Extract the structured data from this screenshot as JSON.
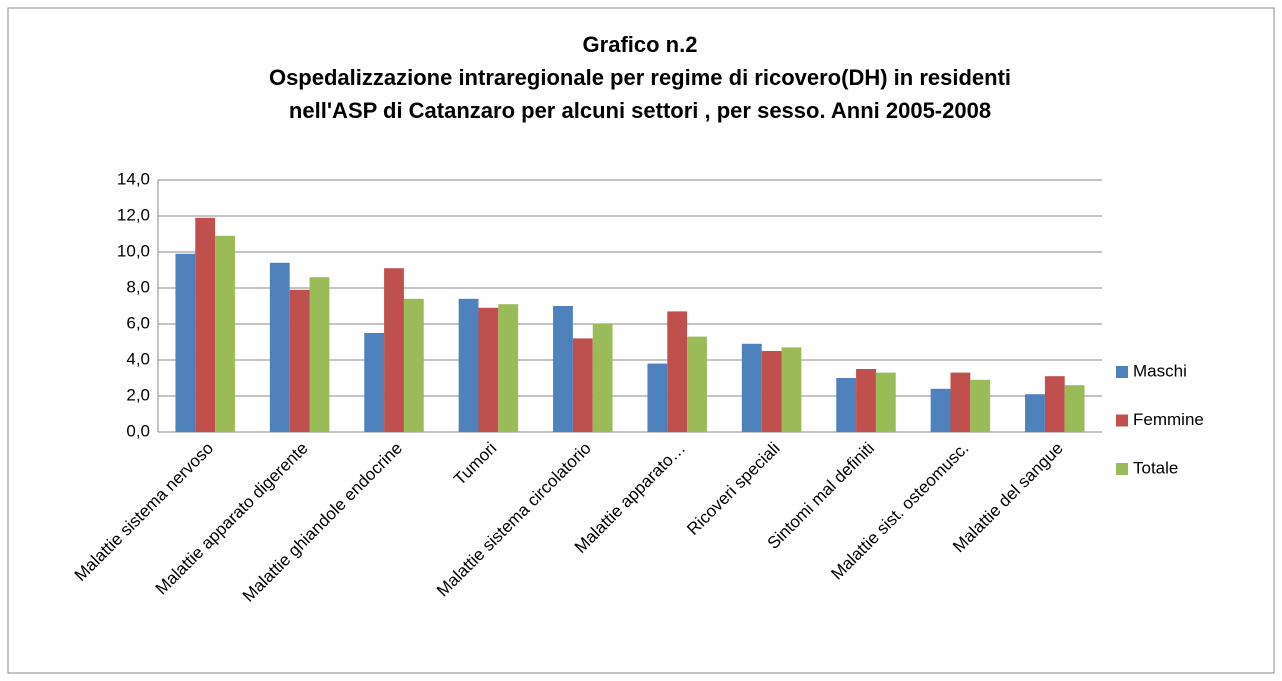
{
  "chart_data": {
    "type": "bar",
    "title": [
      "Grafico n.2",
      "Ospedalizzazione intraregionale  per regime di ricovero(DH) in residenti",
      "nell'ASP di Catanzaro per alcuni settori , per sesso.  Anni 2005-2008"
    ],
    "categories": [
      "Malattie sistema nervoso",
      "Malattie apparato digerente",
      "Malattie ghiandole endocrine",
      "Tumori",
      "Malattie sistema circolatorio",
      "Malattie apparato…",
      "Ricoveri speciali",
      "Sintomi mal definiti",
      "Malattie sist. osteomusc.",
      "Malattie del sangue"
    ],
    "series": [
      {
        "name": "Maschi",
        "color": "#4f81bd",
        "values": [
          9.9,
          9.4,
          5.5,
          7.4,
          7.0,
          3.8,
          4.9,
          3.0,
          2.4,
          2.1
        ]
      },
      {
        "name": "Femmine",
        "color": "#c0504d",
        "values": [
          11.9,
          7.9,
          9.1,
          6.9,
          5.2,
          6.7,
          4.5,
          3.5,
          3.3,
          3.1
        ]
      },
      {
        "name": "Totale",
        "color": "#9bbb59",
        "values": [
          10.9,
          8.6,
          7.4,
          7.1,
          6.0,
          5.3,
          4.7,
          3.3,
          2.9,
          2.6
        ]
      }
    ],
    "ylim": [
      0,
      14
    ],
    "yticks": [
      {
        "value": 0,
        "label": "0,0"
      },
      {
        "value": 2,
        "label": "2,0"
      },
      {
        "value": 4,
        "label": "4,0"
      },
      {
        "value": 6,
        "label": "6,0"
      },
      {
        "value": 8,
        "label": "8,0"
      },
      {
        "value": 10,
        "label": "10,0"
      },
      {
        "value": 12,
        "label": "12,0"
      },
      {
        "value": 14,
        "label": "14,0"
      }
    ],
    "grid": true,
    "legend": "right"
  }
}
